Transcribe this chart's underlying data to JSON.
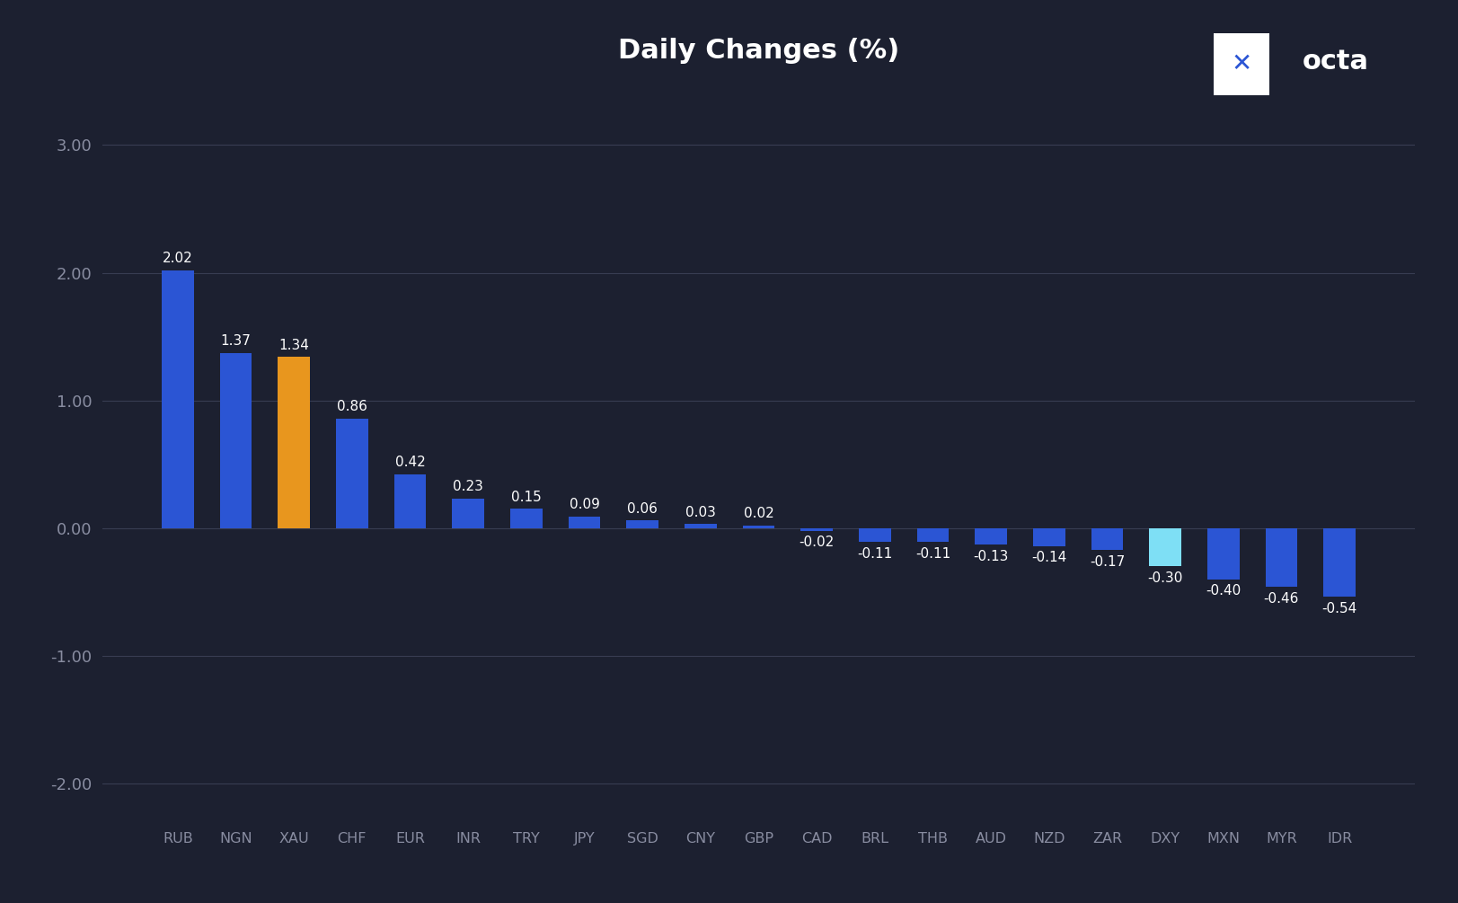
{
  "categories": [
    "RUB",
    "NGN",
    "XAU",
    "CHF",
    "EUR",
    "INR",
    "TRY",
    "JPY",
    "SGD",
    "CNY",
    "GBP",
    "CAD",
    "BRL",
    "THB",
    "AUD",
    "NZD",
    "ZAR",
    "DXY",
    "MXN",
    "MYR",
    "IDR"
  ],
  "values": [
    2.02,
    1.37,
    1.34,
    0.86,
    0.42,
    0.23,
    0.15,
    0.09,
    0.06,
    0.03,
    0.02,
    -0.02,
    -0.11,
    -0.11,
    -0.13,
    -0.14,
    -0.17,
    -0.3,
    -0.4,
    -0.46,
    -0.54
  ],
  "bar_colors": [
    "#2b55d4",
    "#2b55d4",
    "#e8961e",
    "#2b55d4",
    "#2b55d4",
    "#2b55d4",
    "#2b55d4",
    "#2b55d4",
    "#2b55d4",
    "#2b55d4",
    "#2b55d4",
    "#2b55d4",
    "#2b55d4",
    "#2b55d4",
    "#2b55d4",
    "#2b55d4",
    "#2b55d4",
    "#7edff5",
    "#2b55d4",
    "#2b55d4",
    "#2b55d4"
  ],
  "title": "Daily Changes (%)",
  "title_color": "#ffffff",
  "title_fontsize": 22,
  "background_color": "#1c2030",
  "axes_background": "#1c2030",
  "grid_color": "#383d52",
  "tick_color": "#888ca0",
  "label_color": "#888ca0",
  "ylim": [
    -2.3,
    3.5
  ],
  "yticks": [
    -2.0,
    -1.0,
    0.0,
    1.0,
    2.0,
    3.0
  ],
  "bar_width": 0.55,
  "value_label_color": "#ffffff",
  "value_label_fontsize": 11,
  "logo_icon_color": "#ffffff",
  "logo_text": "octa",
  "logo_text_color": "#ffffff",
  "logo_icon_bg": "#ffffff",
  "logo_x_color": "#2b55d4"
}
